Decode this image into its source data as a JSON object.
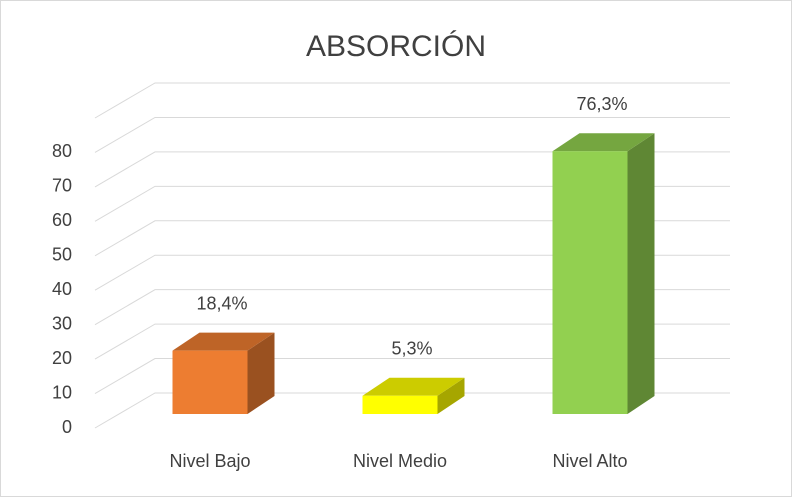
{
  "chart_data": {
    "type": "bar3d",
    "title": "ABSORCIÓN",
    "categories": [
      "Nivel Bajo",
      "Nivel Medio",
      "Nivel Alto"
    ],
    "values": [
      18.4,
      5.3,
      76.3
    ],
    "value_labels": [
      "18,4%",
      "5,3%",
      "76,3%"
    ],
    "colors": [
      "#ed7d31",
      "#ffff00",
      "#92d050"
    ],
    "ylim": [
      0,
      90
    ],
    "yticks": [
      0,
      10,
      20,
      30,
      40,
      50,
      60,
      70,
      80
    ],
    "grid": true
  }
}
